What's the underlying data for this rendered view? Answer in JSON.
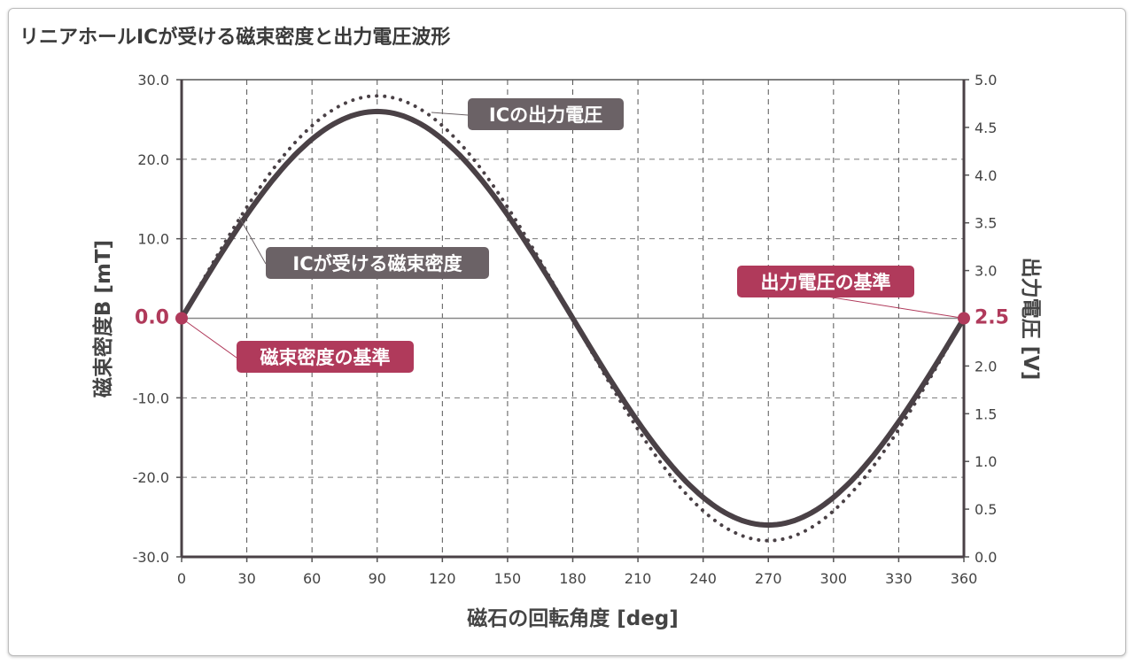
{
  "chart_data": {
    "type": "line",
    "title": "リニアホールICが受ける磁束密度と出力電圧波形",
    "xlabel": "磁石の回転角度 [deg]",
    "ylabel": "磁束密度B [mT]",
    "y2label": "出力電圧 [V]",
    "xlim": [
      0,
      360
    ],
    "ylim": [
      -30,
      30
    ],
    "y2lim": [
      0,
      5
    ],
    "grid": true,
    "x_ticks": [
      "0",
      "30",
      "60",
      "90",
      "120",
      "150",
      "180",
      "210",
      "240",
      "270",
      "300",
      "330",
      "360"
    ],
    "y_ticks": [
      "30.0",
      "20.0",
      "10.0",
      "0.0",
      "-10.0",
      "-20.0",
      "-30.0"
    ],
    "y2_ticks": [
      "5.0",
      "4.5",
      "4.0",
      "3.5",
      "3.0",
      "2.5",
      "2.0",
      "1.5",
      "1.0",
      "0.5",
      "0.0"
    ],
    "series": [
      {
        "name": "ICが受ける磁束密度",
        "axis": "left",
        "style": "solid",
        "function": "sine",
        "amplitude": 26.0,
        "offset": 0.0,
        "x": [
          0,
          30,
          60,
          90,
          120,
          150,
          180,
          210,
          240,
          270,
          300,
          330,
          360
        ],
        "values": [
          0,
          13,
          22.5,
          26,
          22.5,
          13,
          0,
          -13,
          -22.5,
          -26,
          -22.5,
          -13,
          0
        ]
      },
      {
        "name": "ICの出力電圧",
        "axis": "right",
        "style": "dotted",
        "function": "sine",
        "amplitude": 2.33,
        "offset": 2.5,
        "x": [
          0,
          30,
          60,
          90,
          120,
          150,
          180,
          210,
          240,
          270,
          300,
          330,
          360
        ],
        "values": [
          2.5,
          3.67,
          4.52,
          4.83,
          4.52,
          3.67,
          2.5,
          1.33,
          0.48,
          0.17,
          0.48,
          1.33,
          2.5
        ]
      }
    ],
    "annotations": [
      {
        "text": "ICの出力電圧",
        "style": "gray"
      },
      {
        "text": "ICが受ける磁束密度",
        "style": "gray"
      },
      {
        "text": "磁束密度の基準",
        "style": "accent",
        "value": "0.0"
      },
      {
        "text": "出力電圧の基準",
        "style": "accent",
        "value": "2.5"
      }
    ],
    "colors": {
      "line": "#4a4146",
      "accent": "#b03a5b",
      "label_bg": "#6b6266",
      "grid": "#8a8a8a"
    }
  }
}
